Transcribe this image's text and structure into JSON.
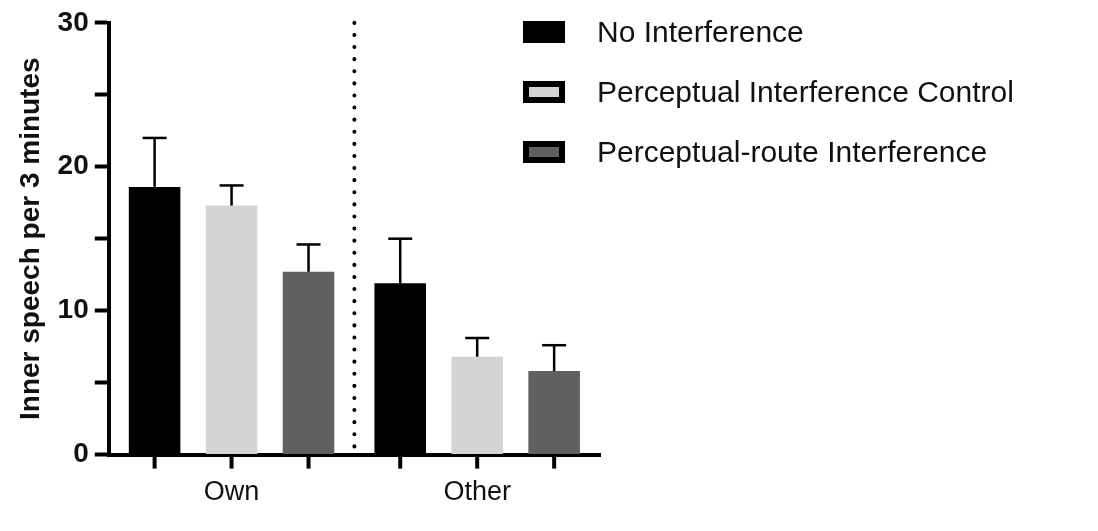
{
  "chart_data": {
    "type": "bar",
    "ylabel": "Inner speech per 3 minutes",
    "categories": [
      "Own",
      "Other"
    ],
    "series": [
      {
        "name": "No Interference",
        "color": "#000000",
        "values": [
          18.6,
          11.9
        ],
        "errors": [
          [
            18.6,
            22.0
          ],
          [
            11.9,
            15.0
          ]
        ]
      },
      {
        "name": "Perceptual Interference Control",
        "color": "#d4d4d4",
        "values": [
          17.3,
          6.8
        ],
        "errors": [
          [
            17.3,
            18.7
          ],
          [
            6.8,
            8.1
          ]
        ]
      },
      {
        "name": "Perceptual-route Interference",
        "color": "#606060",
        "values": [
          12.7,
          5.8
        ],
        "errors": [
          [
            12.7,
            14.6
          ],
          [
            5.8,
            7.6
          ]
        ]
      }
    ],
    "ylim": [
      0,
      30
    ],
    "yticks": [
      0,
      {
        "value": 5,
        "label": null
      },
      10,
      {
        "value": 15,
        "label": null
      },
      20,
      {
        "value": 25,
        "label": null
      },
      30
    ],
    "grid": false,
    "legend": "top right"
  }
}
